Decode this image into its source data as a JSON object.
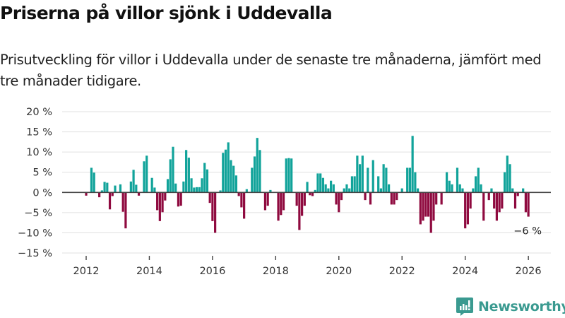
{
  "title": "Priserna på villor sjönk i Uddevalla",
  "subtitle": "Prisutveckling för villor i Uddevalla under de senaste tre månaderna, jämfört med tre månader tidigare.",
  "brand": {
    "name": "Newsworthy",
    "color": "#3a9a90"
  },
  "colors": {
    "positive": "#11a39a",
    "negative": "#8f0a3f",
    "zero_line": "#444444",
    "grid": "#e0e0e0"
  },
  "chart_data": {
    "type": "bar",
    "title": "Priserna på villor sjönk i Uddevalla",
    "xlabel": "",
    "ylabel": "",
    "ylim": [
      -15,
      20
    ],
    "yticks": [
      20,
      15,
      10,
      5,
      0,
      -5,
      -10,
      -15
    ],
    "ytick_labels": [
      "20 %",
      "15 %",
      "10 %",
      "5 %",
      "0 %",
      "−5 %",
      "−10 %",
      "−15 %"
    ],
    "xticks": [
      "2012",
      "2014",
      "2016",
      "2018",
      "2020",
      "2022",
      "2024",
      "2026"
    ],
    "grid": true,
    "start": "2012-01",
    "frequency": "monthly",
    "unit": "%",
    "annotation": {
      "label": "−6 %",
      "target": "last"
    },
    "values": [
      -0.8,
      0,
      6.1,
      4.9,
      0,
      -1.2,
      0.5,
      2.6,
      2.4,
      -4.2,
      -0.9,
      1.7,
      0,
      2.0,
      -4.8,
      -8.9,
      0,
      2.7,
      5.6,
      1.9,
      -0.8,
      0,
      7.7,
      9.1,
      0,
      3.6,
      1.2,
      -4.4,
      -7.1,
      -4.9,
      -2.0,
      3.3,
      8.2,
      11.3,
      2.2,
      -3.5,
      -3.3,
      2.7,
      10.5,
      8.6,
      3.5,
      1.2,
      1.3,
      1.3,
      3.5,
      7.3,
      5.7,
      -2.6,
      -7.1,
      -10.0,
      0,
      0.5,
      9.8,
      10.6,
      12.4,
      8.0,
      6.6,
      4.2,
      -0.9,
      -3.7,
      -6.5,
      0.8,
      0,
      6.1,
      8.9,
      13.5,
      10.5,
      0,
      -4.4,
      -3.3,
      0.6,
      0,
      0,
      -7.0,
      -5.6,
      -4.4,
      8.4,
      8.5,
      8.4,
      0,
      -3.3,
      -9.3,
      -5.8,
      -3.3,
      2.6,
      -0.7,
      -0.9,
      0.6,
      4.7,
      4.7,
      3.6,
      2.0,
      1.0,
      2.9,
      2.0,
      -3.0,
      -4.9,
      -1.9,
      1.0,
      2.0,
      1.0,
      4.0,
      4.0,
      9.1,
      7.0,
      9.1,
      -1.9,
      6.1,
      -3.0,
      8.0,
      0,
      4.0,
      1.0,
      7.0,
      6.1,
      2.0,
      -3.0,
      -3.0,
      -1.9,
      0,
      1.0,
      0,
      6.1,
      6.1,
      14.0,
      5.0,
      1.0,
      -7.9,
      -7.0,
      -6.0,
      -6.0,
      -10.0,
      -7.0,
      -3.0,
      0,
      -3.0,
      0,
      5.0,
      2.9,
      2.0,
      0,
      6.1,
      2.0,
      1.0,
      -8.9,
      -7.9,
      -4.0,
      1.0,
      4.0,
      6.1,
      2.0,
      -7.0,
      0,
      -1.9,
      1.0,
      -4.0,
      -7.0,
      -4.9,
      -4.0,
      5.0,
      9.1,
      7.0,
      1.0,
      -4.0,
      -0.9,
      0,
      1.0,
      -4.9,
      -6.0
    ]
  }
}
